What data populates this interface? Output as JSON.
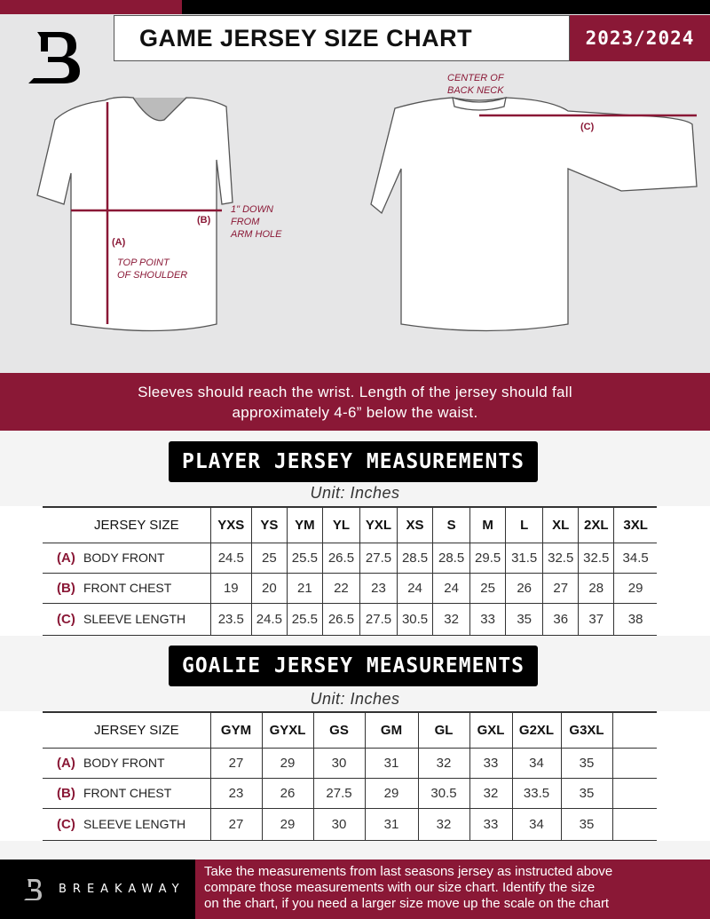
{
  "header": {
    "title": "GAME JERSEY SIZE CHART",
    "season": "2023/2024"
  },
  "diagram": {
    "center_back_neck": [
      "CENTER OF",
      "BACK NECK"
    ],
    "label_a": "(A)",
    "label_b": "(B)",
    "label_c": "(C)",
    "down_note": [
      "1\" DOWN",
      "FROM",
      "ARM HOLE"
    ],
    "shoulder_note": [
      "TOP POINT",
      "OF SHOULDER"
    ]
  },
  "banner": {
    "line1": "Sleeves should reach the wrist. Length of the jersey should fall",
    "line2": "approximately 4-6” below the waist."
  },
  "player": {
    "title": "PLAYER JERSEY MEASUREMENTS",
    "unit": "Unit: Inches",
    "size_header": "JERSEY SIZE",
    "sizes": [
      "YXS",
      "YS",
      "YM",
      "YL",
      "YXL",
      "XS",
      "S",
      "M",
      "L",
      "XL",
      "2XL",
      "3XL"
    ],
    "rows": [
      {
        "letter": "(A)",
        "label": "BODY FRONT",
        "values": [
          "24.5",
          "25",
          "25.5",
          "26.5",
          "27.5",
          "28.5",
          "28.5",
          "29.5",
          "31.5",
          "32.5",
          "32.5",
          "34.5"
        ]
      },
      {
        "letter": "(B)",
        "label": "FRONT CHEST",
        "values": [
          "19",
          "20",
          "21",
          "22",
          "23",
          "24",
          "24",
          "25",
          "26",
          "27",
          "28",
          "29"
        ]
      },
      {
        "letter": "(C)",
        "label": "SLEEVE LENGTH",
        "values": [
          "23.5",
          "24.5",
          "25.5",
          "26.5",
          "27.5",
          "30.5",
          "32",
          "33",
          "35",
          "36",
          "37",
          "38"
        ]
      }
    ]
  },
  "goalie": {
    "title": "GOALIE JERSEY MEASUREMENTS",
    "unit": "Unit: Inches",
    "size_header": "JERSEY SIZE",
    "sizes": [
      "GYM",
      "GYXL",
      "GS",
      "GM",
      "GL",
      "GXL",
      "G2XL",
      "G3XL",
      ""
    ],
    "rows": [
      {
        "letter": "(A)",
        "label": "BODY FRONT",
        "values": [
          "27",
          "29",
          "30",
          "31",
          "32",
          "33",
          "34",
          "35",
          ""
        ]
      },
      {
        "letter": "(B)",
        "label": "FRONT CHEST",
        "values": [
          "23",
          "26",
          "27.5",
          "29",
          "30.5",
          "32",
          "33.5",
          "35",
          ""
        ]
      },
      {
        "letter": "(C)",
        "label": "SLEEVE LENGTH",
        "values": [
          "27",
          "29",
          "30",
          "31",
          "32",
          "33",
          "34",
          "35",
          ""
        ]
      }
    ]
  },
  "footer": {
    "brand": "BREAKAWAY",
    "text": [
      "Take the measurements from last seasons jersey as instructed above",
      "compare those measurements  with our size chart. Identify the size",
      "on the chart, if you need a larger size move up the scale on the chart"
    ]
  },
  "colors": {
    "accent": "#8a1836",
    "dark": "#000000",
    "background": "#e6e6e7"
  }
}
